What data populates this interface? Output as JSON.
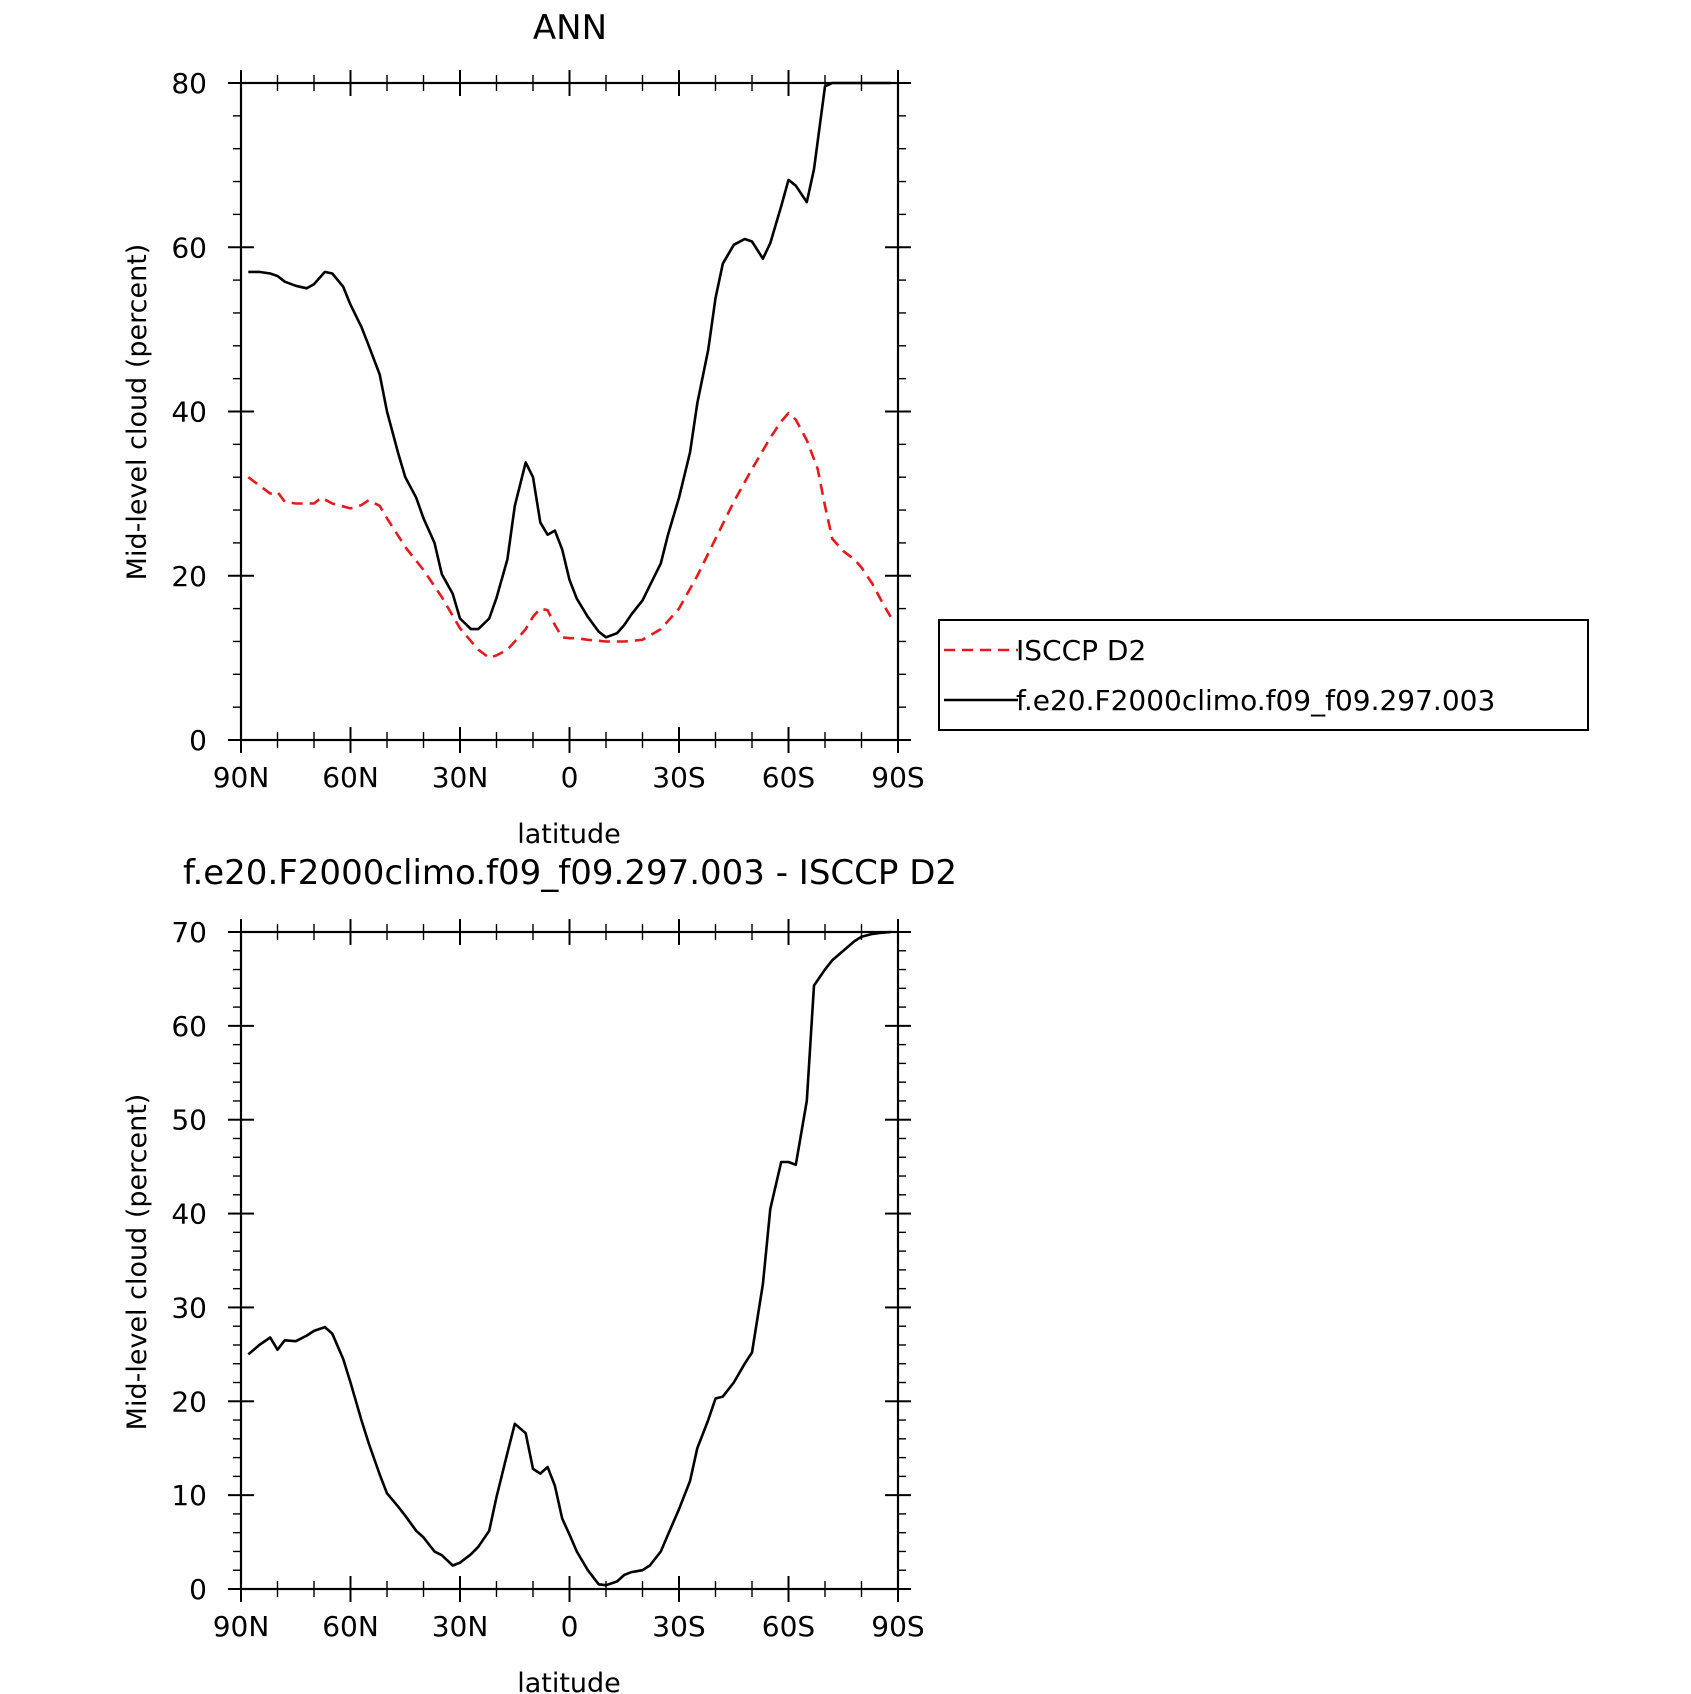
{
  "chart_data": [
    {
      "type": "line",
      "title": "ANN",
      "xlabel": "latitude",
      "ylabel": "Mid-level cloud (percent)",
      "xlim": [
        90,
        -90
      ],
      "ylim": [
        0,
        80
      ],
      "xticks": [
        90,
        60,
        30,
        0,
        -30,
        -60,
        -90
      ],
      "xtick_labels": [
        "90N",
        "60N",
        "30N",
        "0",
        "30S",
        "60S",
        "90S"
      ],
      "yticks": [
        0,
        20,
        40,
        60,
        80
      ],
      "ytick_labels": [
        "0",
        "20",
        "40",
        "60",
        "80"
      ],
      "legend": "outside-right",
      "series": [
        {
          "name": "ISCCP D2",
          "color": "#e41a1c",
          "style": "dashed",
          "x": [
            88,
            85,
            82,
            80,
            78,
            75,
            70,
            68,
            65,
            60,
            57,
            55,
            52,
            50,
            45,
            40,
            35,
            30,
            25,
            22,
            20,
            17,
            15,
            12,
            10,
            8,
            6,
            4,
            2,
            0,
            -2,
            -5,
            -10,
            -15,
            -20,
            -25,
            -30,
            -35,
            -40,
            -45,
            -50,
            -55,
            -58,
            -60,
            -62,
            -65,
            -68,
            -70,
            -72,
            -75,
            -78,
            -80,
            -83,
            -86,
            -88
          ],
          "y": [
            32,
            31,
            30,
            30.2,
            29,
            28.8,
            28.8,
            29.5,
            28.8,
            28.2,
            28.6,
            29.2,
            28.5,
            27,
            23.5,
            20.7,
            17.4,
            13.6,
            11,
            10,
            10.3,
            11,
            12,
            13.5,
            15,
            16,
            15.8,
            14,
            12.5,
            12.4,
            12.4,
            12.2,
            12,
            12,
            12.2,
            13.5,
            16,
            20,
            24.5,
            29,
            33,
            36.8,
            38.8,
            39.8,
            39,
            36.5,
            33,
            28.5,
            24.5,
            23,
            22,
            21,
            19,
            16.5,
            15
          ]
        },
        {
          "name": "f.e20.F2000climo.f09_f09.297.003",
          "color": "#000000",
          "style": "solid",
          "x": [
            88,
            85,
            82,
            80,
            78,
            75,
            72,
            70,
            67,
            65,
            62,
            60,
            57,
            55,
            52,
            50,
            47,
            45,
            42,
            40,
            37,
            35,
            32,
            30,
            27,
            25,
            22,
            20,
            17,
            15,
            12,
            10,
            8,
            6,
            4,
            2,
            0,
            -2,
            -5,
            -8,
            -10,
            -13,
            -15,
            -17,
            -20,
            -22,
            -25,
            -27,
            -30,
            -33,
            -35,
            -38,
            -40,
            -42,
            -45,
            -48,
            -50,
            -53,
            -55,
            -58,
            -60,
            -62,
            -65,
            -67,
            -70,
            -72,
            -75,
            -78,
            -80,
            -83,
            -85,
            -88
          ],
          "y": [
            57,
            57,
            56.8,
            56.5,
            55.8,
            55.3,
            55,
            55.5,
            57,
            56.8,
            55.2,
            53,
            50.3,
            48,
            44.5,
            40,
            35,
            32,
            29.5,
            27,
            24,
            20.2,
            17.8,
            14.8,
            13.5,
            13.5,
            14.8,
            17.3,
            22,
            28.5,
            33.8,
            32,
            26.5,
            25,
            25.5,
            23.2,
            19.5,
            17.2,
            15,
            13.2,
            12.5,
            13,
            14,
            15.3,
            17,
            18.8,
            21.5,
            25,
            29.5,
            35,
            41,
            47.5,
            53.8,
            58,
            60.3,
            61,
            60.7,
            58.6,
            60.5,
            65,
            68.2,
            67.5,
            65.5,
            69.5,
            79.6,
            81,
            82,
            83,
            84,
            85,
            86,
            87
          ],
          "note_y_after_90S": "clipped"
        }
      ]
    },
    {
      "type": "line",
      "title": "f.e20.F2000climo.f09_f09.297.003 - ISCCP D2",
      "xlabel": "latitude",
      "ylabel": "Mid-level cloud (percent)",
      "xlim": [
        90,
        -90
      ],
      "ylim": [
        0,
        70
      ],
      "xticks": [
        90,
        60,
        30,
        0,
        -30,
        -60,
        -90
      ],
      "xtick_labels": [
        "90N",
        "60N",
        "30N",
        "0",
        "30S",
        "60S",
        "90S"
      ],
      "yticks": [
        0,
        10,
        20,
        30,
        40,
        50,
        60,
        70
      ],
      "ytick_labels": [
        "0",
        "10",
        "20",
        "30",
        "40",
        "50",
        "60",
        "70"
      ],
      "series": [
        {
          "color": "#000000",
          "style": "solid",
          "x": [
            88,
            85,
            82,
            80,
            78,
            75,
            72,
            70,
            67,
            65,
            62,
            60,
            57,
            55,
            52,
            50,
            47,
            45,
            42,
            40,
            37,
            35,
            32,
            30,
            27,
            25,
            22,
            20,
            17,
            15,
            12,
            10,
            8,
            6,
            4,
            2,
            0,
            -2,
            -5,
            -8,
            -10,
            -13,
            -15,
            -17,
            -20,
            -22,
            -25,
            -27,
            -30,
            -33,
            -35,
            -38,
            -40,
            -42,
            -45,
            -48,
            -50,
            -53,
            -55,
            -58,
            -60,
            -62,
            -65,
            -67,
            -70,
            -72,
            -75,
            -78,
            -80,
            -83,
            -85,
            -88
          ],
          "y": [
            25,
            26,
            26.8,
            25.5,
            26.5,
            26.4,
            27,
            27.5,
            27.9,
            27.2,
            24.5,
            22,
            18,
            15.5,
            12.2,
            10.2,
            8.8,
            7.8,
            6.2,
            5.5,
            4,
            3.6,
            2.5,
            2.8,
            3.7,
            4.5,
            6.2,
            9.8,
            14.5,
            17.6,
            16.6,
            12.8,
            12.3,
            13,
            11,
            7.5,
            5.8,
            4,
            2,
            0.5,
            0.4,
            0.8,
            1.5,
            1.8,
            2,
            2.5,
            4,
            5.8,
            8.5,
            11.5,
            15,
            18,
            20.3,
            20.5,
            22,
            24,
            25.2,
            32.5,
            40.5,
            45.5,
            45.5,
            45.2,
            52,
            64.3,
            66,
            67,
            68,
            69,
            69.5,
            69.8,
            69.9,
            70
          ],
          "note_y_after_90S": "clipped"
        }
      ]
    }
  ]
}
